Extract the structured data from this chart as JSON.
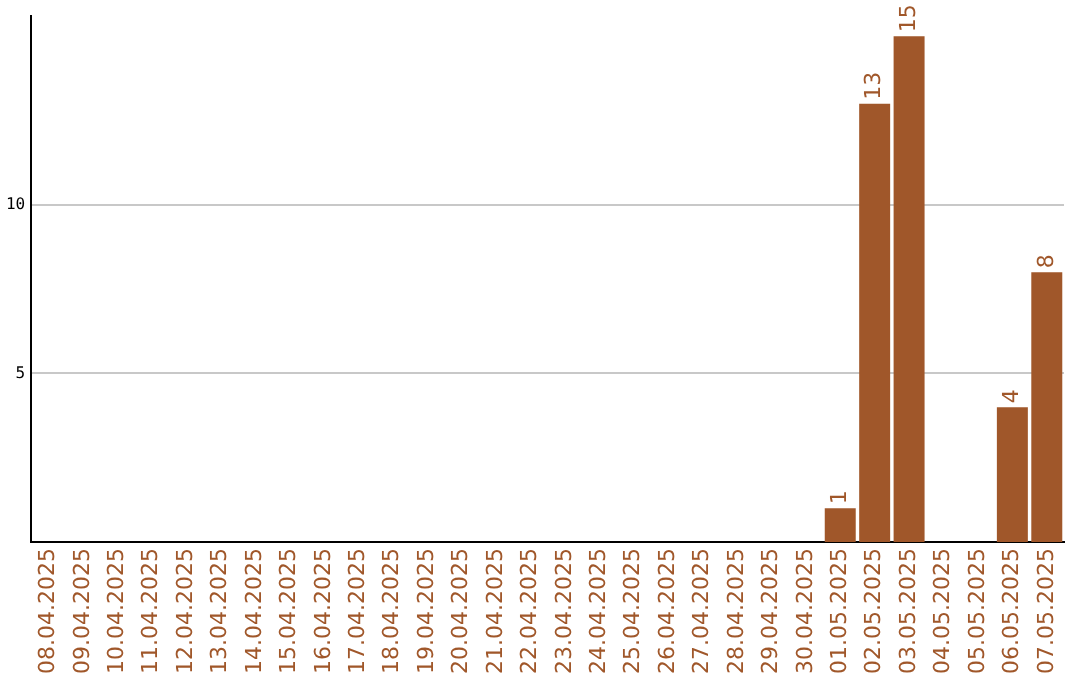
{
  "chart_data": {
    "type": "bar",
    "categories": [
      "08.04.2025",
      "09.04.2025",
      "10.04.2025",
      "11.04.2025",
      "12.04.2025",
      "13.04.2025",
      "14.04.2025",
      "15.04.2025",
      "16.04.2025",
      "17.04.2025",
      "18.04.2025",
      "19.04.2025",
      "20.04.2025",
      "21.04.2025",
      "22.04.2025",
      "23.04.2025",
      "24.04.2025",
      "25.04.2025",
      "26.04.2025",
      "27.04.2025",
      "28.04.2025",
      "29.04.2025",
      "30.04.2025",
      "01.05.2025",
      "02.05.2025",
      "03.05.2025",
      "04.05.2025",
      "05.05.2025",
      "06.05.2025",
      "07.05.2025"
    ],
    "values": [
      0,
      0,
      0,
      0,
      0,
      0,
      0,
      0,
      0,
      0,
      0,
      0,
      0,
      0,
      0,
      0,
      0,
      0,
      0,
      0,
      0,
      0,
      0,
      1,
      13,
      15,
      0,
      0,
      4,
      8
    ],
    "value_labels": [
      null,
      null,
      null,
      null,
      null,
      null,
      null,
      null,
      null,
      null,
      null,
      null,
      null,
      null,
      null,
      null,
      null,
      null,
      null,
      null,
      null,
      null,
      null,
      "1",
      "13",
      "15",
      null,
      null,
      "4",
      "8"
    ],
    "color": "#a0572a",
    "ylim": [
      0,
      15.6
    ],
    "yticks": [
      5,
      10
    ],
    "grid": "y",
    "legend": false
  }
}
